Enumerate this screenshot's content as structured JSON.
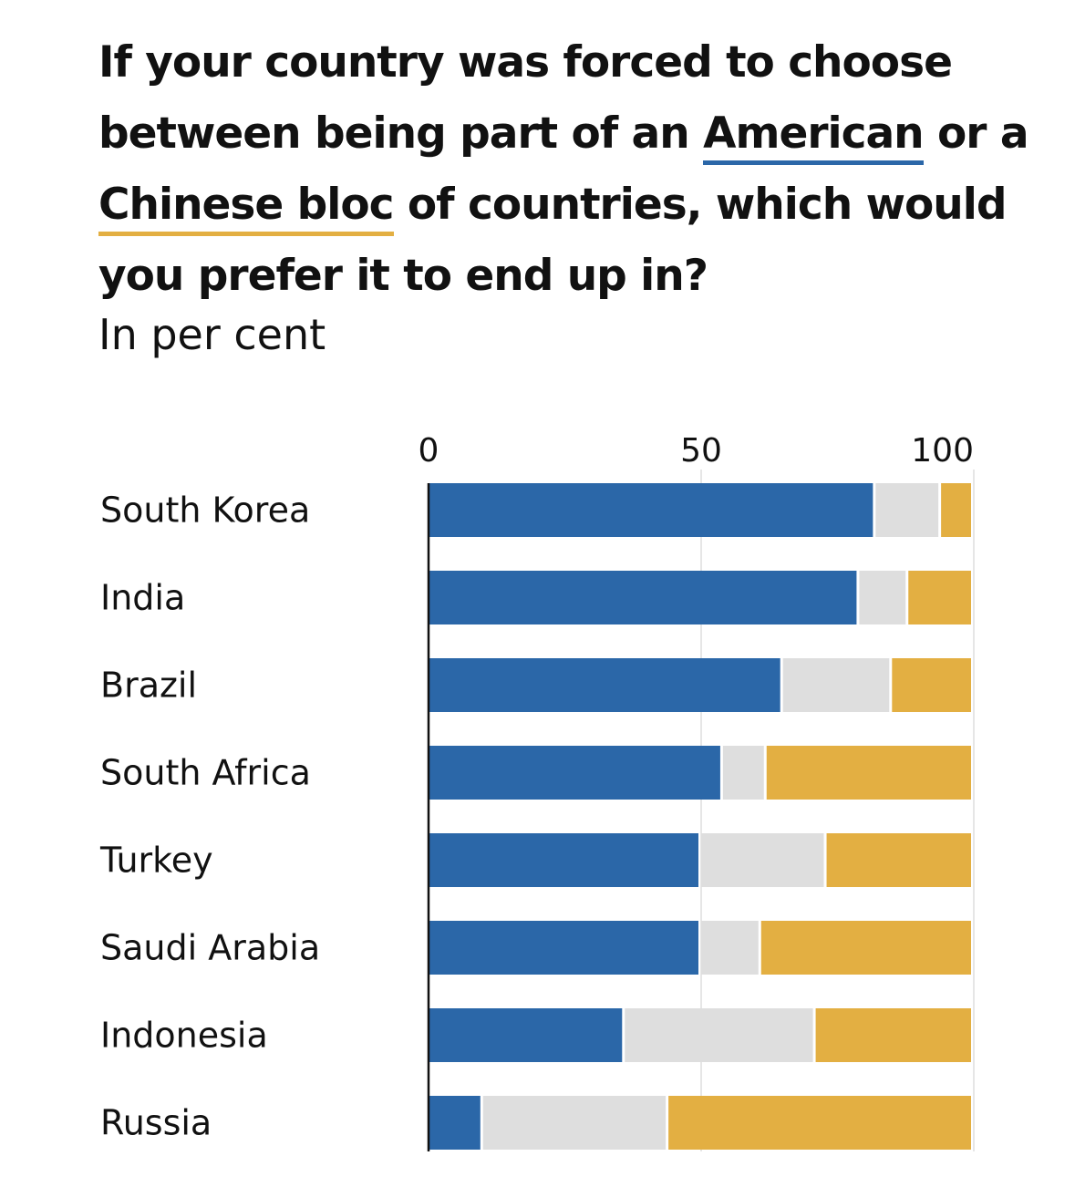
{
  "title": {
    "part1": "If your country was forced to choose between being part of an ",
    "american": "American",
    "part2": " or a ",
    "chinese": "Chinese bloc",
    "part3": " of countries, which would you prefer it to end up in?"
  },
  "subtitle": "In per cent",
  "colors": {
    "american": "#2b67a8",
    "neither": "#dedede",
    "chinese": "#e3af42",
    "gridline": "#e6e6e6",
    "axis": "#111111"
  },
  "chart_data": {
    "type": "bar",
    "orientation": "horizontal",
    "stacked": true,
    "categories": [
      "South Korea",
      "India",
      "Brazil",
      "South Africa",
      "Turkey",
      "Saudi Arabia",
      "Indonesia",
      "Russia"
    ],
    "series": [
      {
        "key": "american",
        "values": [
          82,
          79,
          65,
          54,
          50,
          50,
          36,
          10
        ]
      },
      {
        "key": "neither",
        "values": [
          12,
          9,
          20,
          8,
          23,
          11,
          35,
          34
        ]
      },
      {
        "key": "chinese",
        "values": [
          6,
          12,
          15,
          38,
          27,
          39,
          29,
          56
        ]
      }
    ],
    "xlim": [
      0,
      100
    ],
    "xticks": [
      0,
      50,
      100
    ],
    "grid": true
  }
}
